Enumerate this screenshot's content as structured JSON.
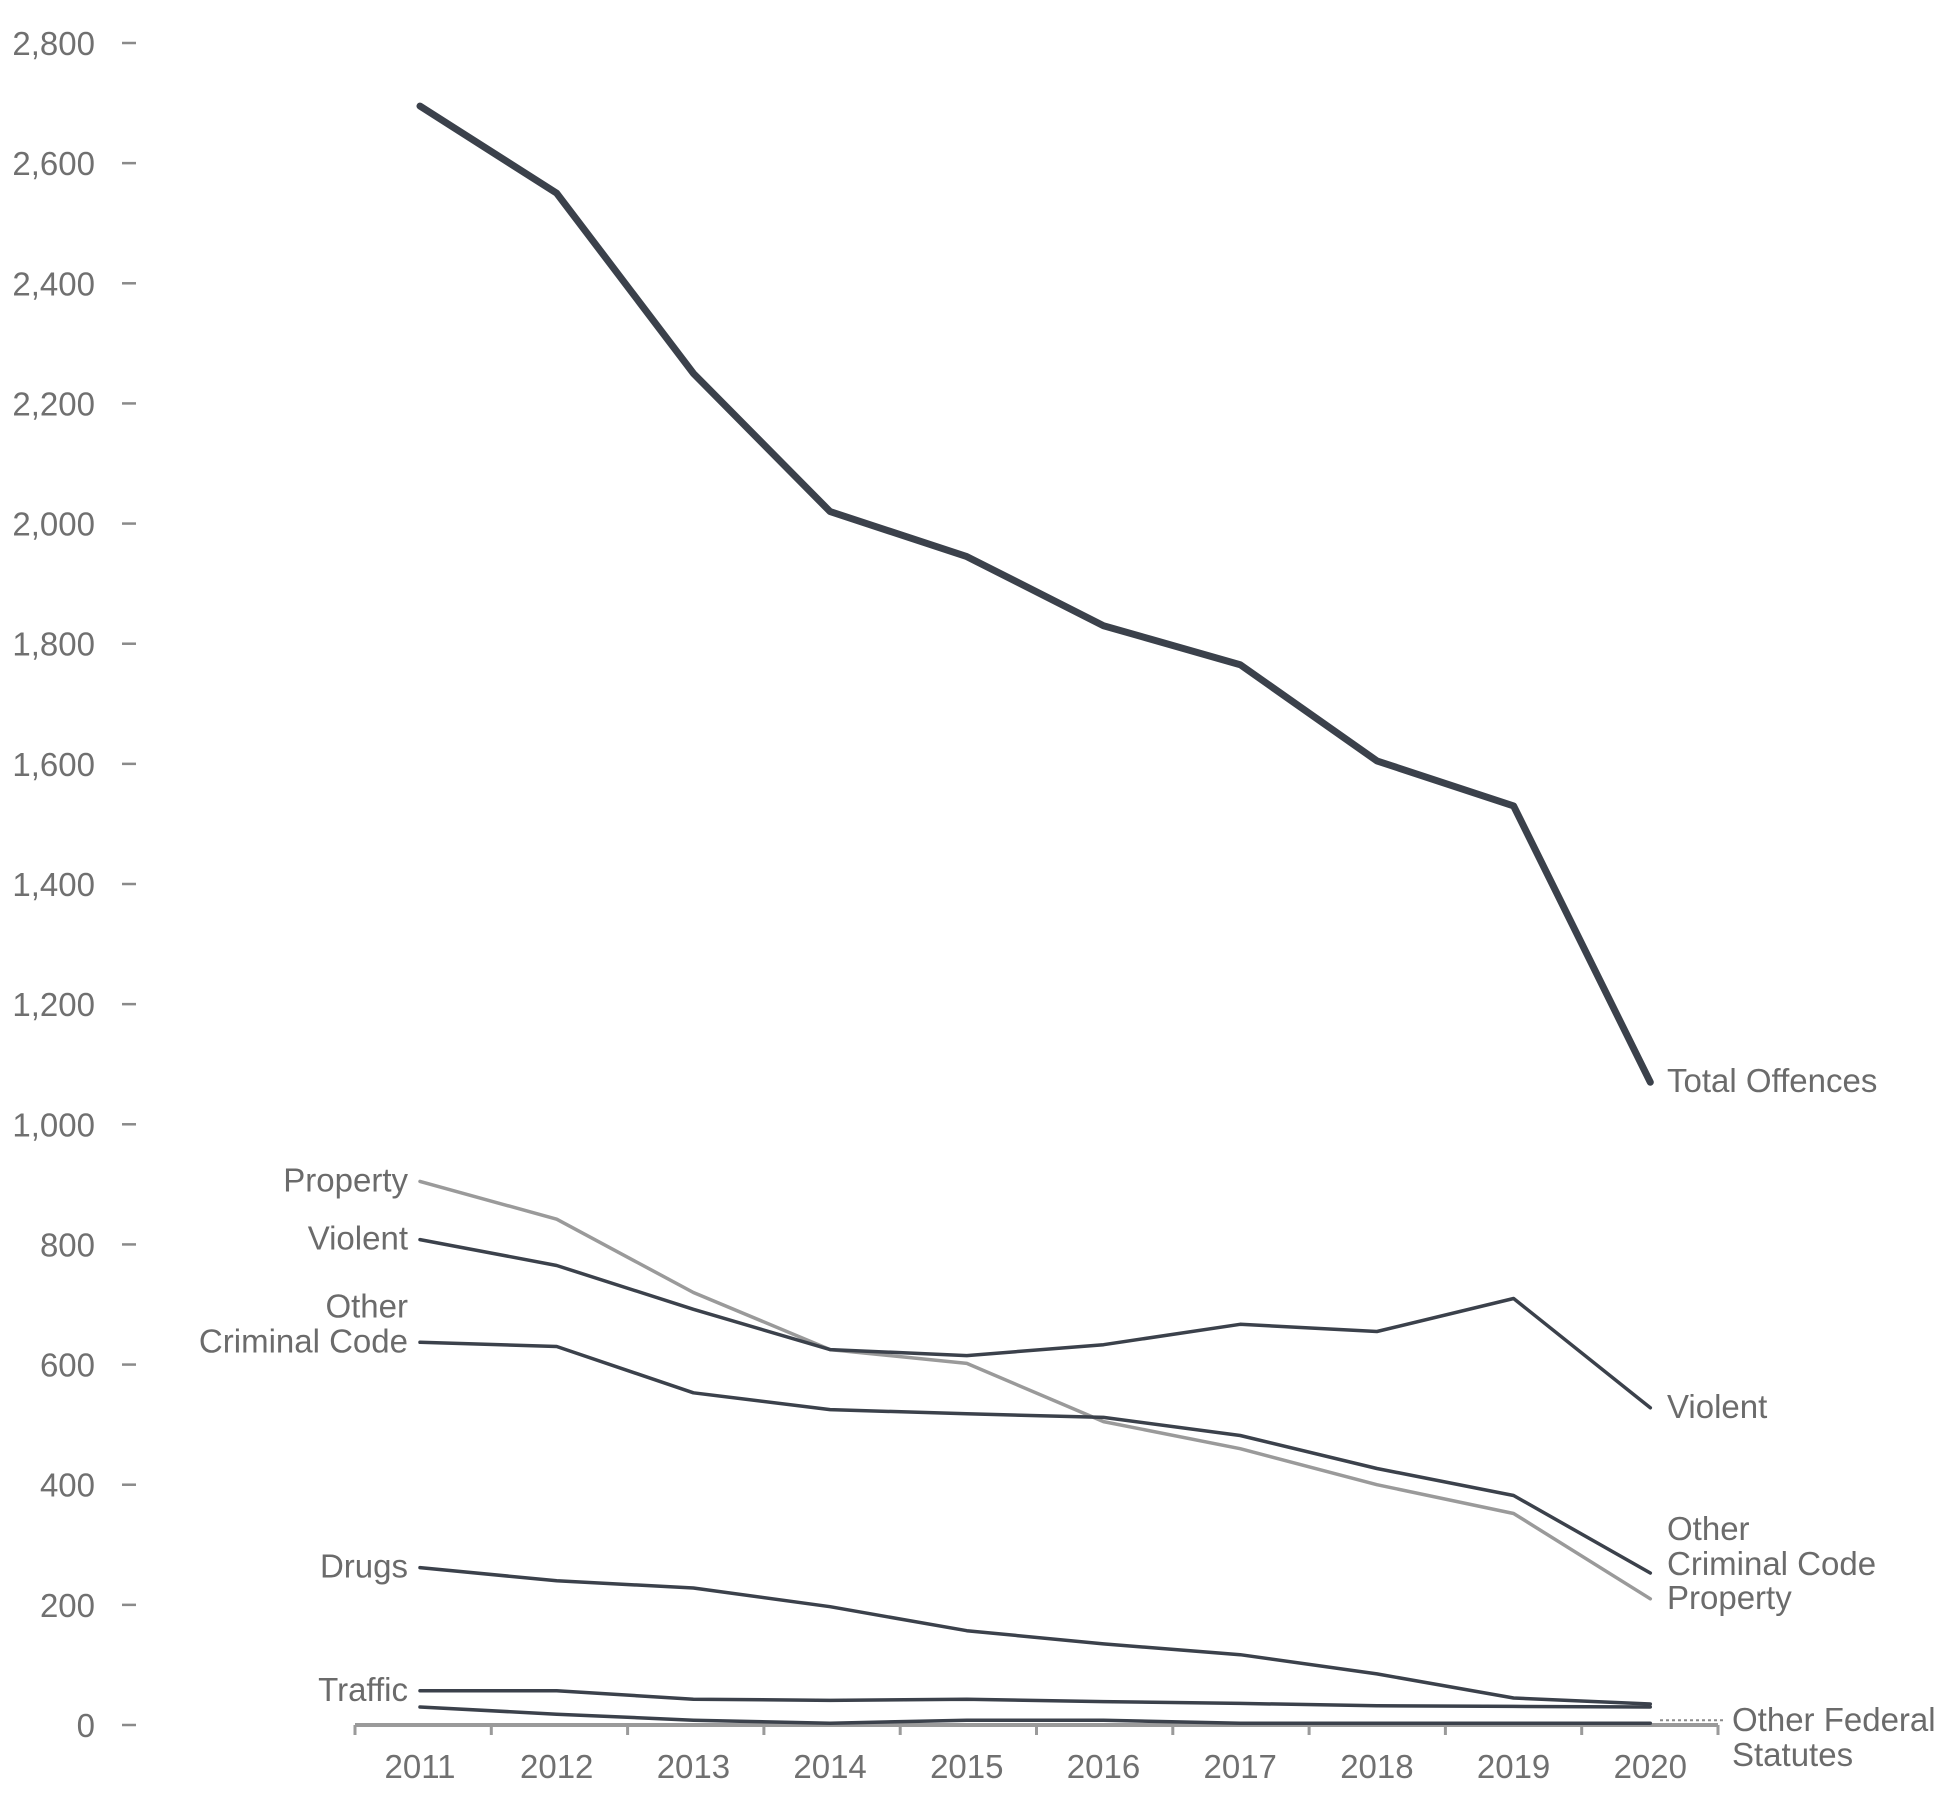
{
  "chart_data": {
    "type": "line",
    "title": "",
    "xlabel": "",
    "ylabel": "",
    "ylim": [
      0,
      2800
    ],
    "grid": false,
    "y_ticks": [
      "0",
      "200",
      "400",
      "600",
      "800",
      "1,000",
      "1,200",
      "1,400",
      "1,600",
      "1,800",
      "2,000",
      "2,200",
      "2,400",
      "2,600",
      "2,800"
    ],
    "y_tick_values": [
      0,
      200,
      400,
      600,
      800,
      1000,
      1200,
      1400,
      1600,
      1800,
      2000,
      2200,
      2400,
      2600,
      2800
    ],
    "categories": [
      "2011",
      "2012",
      "2013",
      "2014",
      "2015",
      "2016",
      "2017",
      "2018",
      "2019",
      "2020"
    ],
    "series": [
      {
        "name": "Total Offences",
        "color": "#3b414b",
        "style": "thick",
        "values": [
          2695,
          2550,
          2250,
          2020,
          1945,
          1830,
          1765,
          1605,
          1530,
          1070
        ],
        "left_label": [],
        "right_label": [
          "Total Offences"
        ]
      },
      {
        "name": "Property",
        "color": "#9a9a9a",
        "style": "normal",
        "values": [
          905,
          842,
          720,
          625,
          602,
          505,
          460,
          400,
          352,
          210
        ],
        "left_label": [
          "Property"
        ],
        "right_label": [
          "Property"
        ]
      },
      {
        "name": "Violent",
        "color": "#3b414b",
        "style": "normal",
        "values": [
          808,
          765,
          692,
          625,
          615,
          633,
          667,
          655,
          710,
          528
        ],
        "left_label": [
          "Violent"
        ],
        "right_label": [
          "Violent"
        ]
      },
      {
        "name": "Other Criminal Code",
        "color": "#3b414b",
        "style": "normal",
        "values": [
          637,
          630,
          553,
          525,
          518,
          512,
          482,
          427,
          382,
          253
        ],
        "left_label": [
          "Other",
          "Criminal Code"
        ],
        "right_label": [
          "Other",
          "Criminal Code"
        ]
      },
      {
        "name": "Drugs",
        "color": "#3b414b",
        "style": "normal",
        "values": [
          262,
          240,
          228,
          197,
          157,
          135,
          117,
          85,
          45,
          35
        ],
        "left_label": [
          "Drugs"
        ],
        "right_label": []
      },
      {
        "name": "Traffic",
        "color": "#3b414b",
        "style": "normal",
        "values": [
          57,
          57,
          43,
          41,
          43,
          39,
          36,
          32,
          31,
          30
        ],
        "left_label": [
          "Traffic"
        ],
        "right_label": []
      },
      {
        "name": "Other Federal Statutes",
        "color": "#3b414b",
        "style": "normal",
        "values": [
          30,
          18,
          8,
          3,
          8,
          8,
          3,
          3,
          3,
          3
        ],
        "left_label": [],
        "right_label": [
          "Other Federal",
          "Statutes"
        ]
      }
    ]
  }
}
